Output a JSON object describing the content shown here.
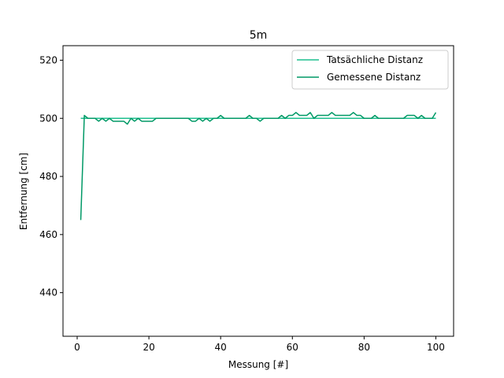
{
  "chart_data": {
    "type": "line",
    "title": "5m",
    "xlabel": "Messung [#]",
    "ylabel": "Entfernung [cm]",
    "xlim": [
      -3.95,
      104.95
    ],
    "ylim": [
      425,
      525
    ],
    "xticks": [
      0,
      20,
      40,
      60,
      80,
      100
    ],
    "yticks": [
      440,
      460,
      480,
      500,
      520
    ],
    "grid": false,
    "legend_position": "top-right",
    "x": [
      1,
      2,
      3,
      4,
      5,
      6,
      7,
      8,
      9,
      10,
      11,
      12,
      13,
      14,
      15,
      16,
      17,
      18,
      19,
      20,
      21,
      22,
      23,
      24,
      25,
      26,
      27,
      28,
      29,
      30,
      31,
      32,
      33,
      34,
      35,
      36,
      37,
      38,
      39,
      40,
      41,
      42,
      43,
      44,
      45,
      46,
      47,
      48,
      49,
      50,
      51,
      52,
      53,
      54,
      55,
      56,
      57,
      58,
      59,
      60,
      61,
      62,
      63,
      64,
      65,
      66,
      67,
      68,
      69,
      70,
      71,
      72,
      73,
      74,
      75,
      76,
      77,
      78,
      79,
      80,
      81,
      82,
      83,
      84,
      85,
      86,
      87,
      88,
      89,
      90,
      91,
      92,
      93,
      94,
      95,
      96,
      97,
      98,
      99,
      100
    ],
    "series": [
      {
        "name": "Tatsächliche Distanz",
        "color": "#1fbf8f",
        "values": [
          500,
          500,
          500,
          500,
          500,
          500,
          500,
          500,
          500,
          500,
          500,
          500,
          500,
          500,
          500,
          500,
          500,
          500,
          500,
          500,
          500,
          500,
          500,
          500,
          500,
          500,
          500,
          500,
          500,
          500,
          500,
          500,
          500,
          500,
          500,
          500,
          500,
          500,
          500,
          500,
          500,
          500,
          500,
          500,
          500,
          500,
          500,
          500,
          500,
          500,
          500,
          500,
          500,
          500,
          500,
          500,
          500,
          500,
          500,
          500,
          500,
          500,
          500,
          500,
          500,
          500,
          500,
          500,
          500,
          500,
          500,
          500,
          500,
          500,
          500,
          500,
          500,
          500,
          500,
          500,
          500,
          500,
          500,
          500,
          500,
          500,
          500,
          500,
          500,
          500,
          500,
          500,
          500,
          500,
          500,
          500,
          500,
          500,
          500,
          500
        ]
      },
      {
        "name": "Gemessene Distanz",
        "color": "#009966",
        "values": [
          465,
          501,
          500,
          500,
          500,
          499,
          500,
          499,
          500,
          499,
          499,
          499,
          499,
          498,
          500,
          499,
          500,
          499,
          499,
          499,
          499,
          500,
          500,
          500,
          500,
          500,
          500,
          500,
          500,
          500,
          500,
          499,
          499,
          500,
          499,
          500,
          499,
          500,
          500,
          501,
          500,
          500,
          500,
          500,
          500,
          500,
          500,
          501,
          500,
          500,
          499,
          500,
          500,
          500,
          500,
          500,
          501,
          500,
          501,
          501,
          502,
          501,
          501,
          501,
          502,
          500,
          501,
          501,
          501,
          501,
          502,
          501,
          501,
          501,
          501,
          501,
          502,
          501,
          501,
          500,
          500,
          500,
          501,
          500,
          500,
          500,
          500,
          500,
          500,
          500,
          500,
          501,
          501,
          501,
          500,
          501,
          500,
          500,
          500,
          502
        ]
      }
    ]
  }
}
